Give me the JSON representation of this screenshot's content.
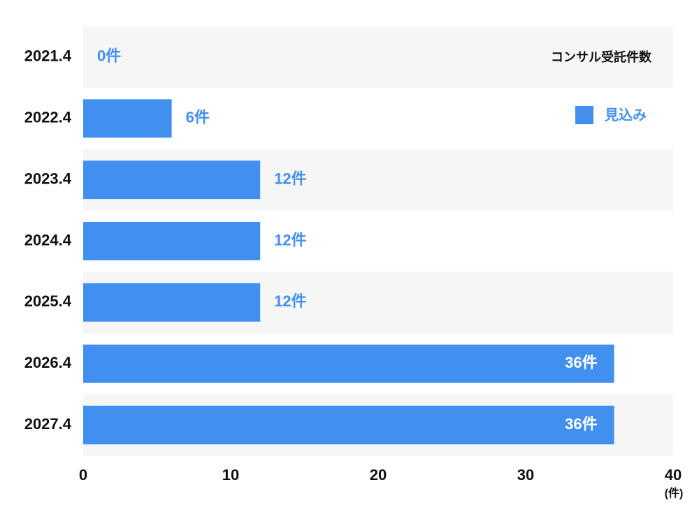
{
  "chart_data": {
    "type": "bar",
    "orientation": "horizontal",
    "title": "コンサル受託件数",
    "x_label": "(件)",
    "categories": [
      "2021.4",
      "2022.4",
      "2023.4",
      "2024.4",
      "2025.4",
      "2026.4",
      "2027.4"
    ],
    "series": [
      {
        "name": "見込み",
        "color": "#4190f0",
        "values": [
          0,
          6,
          12,
          12,
          12,
          36,
          36
        ],
        "value_labels": [
          "0件",
          "6件",
          "12件",
          "12件",
          "12件",
          "36件",
          "36件"
        ]
      }
    ],
    "xlim": [
      0,
      40
    ],
    "xticks": [
      0,
      10,
      20,
      30,
      40
    ]
  }
}
